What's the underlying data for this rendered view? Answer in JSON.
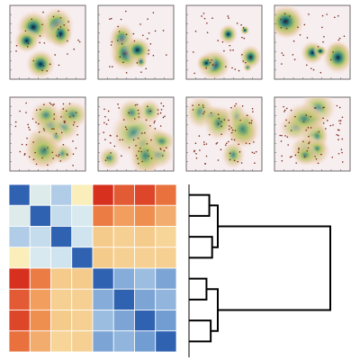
{
  "figure": {
    "colors": {
      "frame": "#6b6b6b",
      "density_low": "#f7eef0",
      "density_mid": "#b8c66a",
      "density_high": "#2a7f7a",
      "density_peak": "#0b1b3a",
      "point": "#7a2a1a",
      "dendrogram": "#000000"
    }
  },
  "chart_data": [
    {
      "type": "heatmap",
      "subtype": "density-maps",
      "rows": 2,
      "cols": 4,
      "panels": [
        {
          "row": 0,
          "col": 0,
          "spread": "clustered"
        },
        {
          "row": 0,
          "col": 1,
          "spread": "clustered"
        },
        {
          "row": 0,
          "col": 2,
          "spread": "clustered"
        },
        {
          "row": 0,
          "col": 3,
          "spread": "clustered"
        },
        {
          "row": 1,
          "col": 0,
          "spread": "diffuse"
        },
        {
          "row": 1,
          "col": 1,
          "spread": "diffuse"
        },
        {
          "row": 1,
          "col": 2,
          "spread": "diffuse"
        },
        {
          "row": 1,
          "col": 3,
          "spread": "diffuse"
        }
      ],
      "colorscale": [
        "#f7eef0",
        "#e9c9a4",
        "#b8c66a",
        "#4f9f86",
        "#0b1b3a"
      ],
      "axis_ticks": false,
      "grid": false
    },
    {
      "type": "heatmap",
      "subtype": "similarity-matrix",
      "size": 8,
      "colorscale": [
        "#2f62b0",
        "#7fa8d8",
        "#d7e9f2",
        "#fbf3c0",
        "#f5c98a",
        "#ef8a4a",
        "#d7301f"
      ],
      "values": [
        [
          0.0,
          0.36,
          0.26,
          0.52,
          1.0,
          0.92,
          0.96,
          0.88
        ],
        [
          0.36,
          0.0,
          0.3,
          0.34,
          0.86,
          0.78,
          0.82,
          0.74
        ],
        [
          0.26,
          0.3,
          0.0,
          0.32,
          0.66,
          0.64,
          0.66,
          0.62
        ],
        [
          0.52,
          0.34,
          0.32,
          0.0,
          0.66,
          0.64,
          0.64,
          0.64
        ],
        [
          1.0,
          0.86,
          0.66,
          0.66,
          0.0,
          0.18,
          0.22,
          0.16
        ],
        [
          0.92,
          0.78,
          0.64,
          0.64,
          0.18,
          0.0,
          0.16,
          0.2
        ],
        [
          0.96,
          0.82,
          0.66,
          0.64,
          0.22,
          0.16,
          0.0,
          0.14
        ],
        [
          0.88,
          0.74,
          0.62,
          0.64,
          0.16,
          0.2,
          0.14,
          0.0
        ]
      ],
      "axis_ticks": false,
      "legend": "none"
    },
    {
      "type": "dendrogram",
      "orientation": "right",
      "leaves": 8,
      "merges": [
        {
          "left": 0,
          "right": 1,
          "height": 0.08
        },
        {
          "left": 2,
          "right": 3,
          "height": 0.1
        },
        {
          "left": 8,
          "right": 9,
          "height": 0.14
        },
        {
          "left": 4,
          "right": 5,
          "height": 0.06
        },
        {
          "left": 6,
          "right": 7,
          "height": 0.09
        },
        {
          "left": 11,
          "right": 12,
          "height": 0.14
        },
        {
          "left": 10,
          "right": 13,
          "height": 1.0
        }
      ]
    }
  ]
}
